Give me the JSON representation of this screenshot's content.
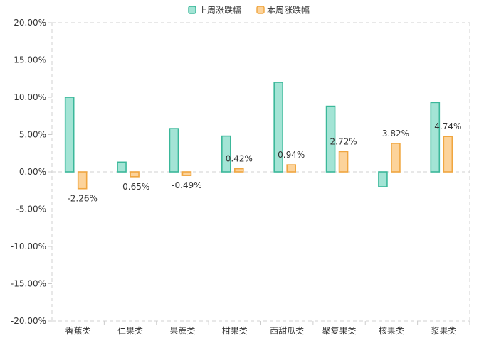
{
  "chart_data": {
    "type": "bar",
    "categories": [
      "香蕉类",
      "仁果类",
      "果蔗类",
      "柑果类",
      "西甜瓜类",
      "聚复果类",
      "核果类",
      "浆果类"
    ],
    "series": [
      {
        "name": "上周涨跌幅",
        "values": [
          10.0,
          1.3,
          5.8,
          4.8,
          12.0,
          8.8,
          -2.0,
          9.3
        ],
        "fill": "#a3e4d5",
        "stroke": "#3bb89a"
      },
      {
        "name": "本周涨跌幅",
        "values": [
          -2.26,
          -0.65,
          -0.49,
          0.42,
          0.94,
          2.72,
          3.82,
          4.74
        ],
        "fill": "#fcd39b",
        "stroke": "#f0a640",
        "labels": [
          "-2.26%",
          "-0.65%",
          "-0.49%",
          "0.42%",
          "0.94%",
          "2.72%",
          "3.82%",
          "4.74%"
        ]
      }
    ],
    "y_ticks": [
      "20.00%",
      "15.00%",
      "10.00%",
      "5.00%",
      "0.00%",
      "-5.00%",
      "-10.00%",
      "-15.00%",
      "-20.00%"
    ],
    "ylim": [
      -20,
      20
    ],
    "grid": false,
    "legend_position": "top-center"
  }
}
